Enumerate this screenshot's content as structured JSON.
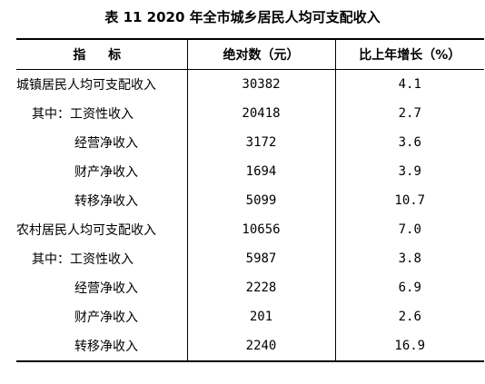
{
  "title": "表 11   2020 年全市城乡居民人均可支配收入",
  "columns": [
    "指  标",
    "绝对数（元）",
    "比上年增长（%）"
  ],
  "rows": [
    {
      "indicator": "城镇居民人均可支配收入",
      "level": 0,
      "value": "30382",
      "growth": "4.1"
    },
    {
      "indicator": "其中：工资性收入",
      "level": 1,
      "value": "20418",
      "growth": "2.7"
    },
    {
      "indicator": "经营净收入",
      "level": 2,
      "value": "3172",
      "growth": "3.6"
    },
    {
      "indicator": "财产净收入",
      "level": 2,
      "value": "1694",
      "growth": "3.9"
    },
    {
      "indicator": "转移净收入",
      "level": 2,
      "value": "5099",
      "growth": "10.7"
    },
    {
      "indicator": "农村居民人均可支配收入",
      "level": 0,
      "value": "10656",
      "growth": "7.0"
    },
    {
      "indicator": "其中：工资性收入",
      "level": 1,
      "value": "5987",
      "growth": "3.8"
    },
    {
      "indicator": "经营净收入",
      "level": 2,
      "value": "2228",
      "growth": "6.9"
    },
    {
      "indicator": "财产净收入",
      "level": 2,
      "value": "201",
      "growth": "2.6"
    },
    {
      "indicator": "转移净收入",
      "level": 2,
      "value": "2240",
      "growth": "16.9"
    }
  ]
}
